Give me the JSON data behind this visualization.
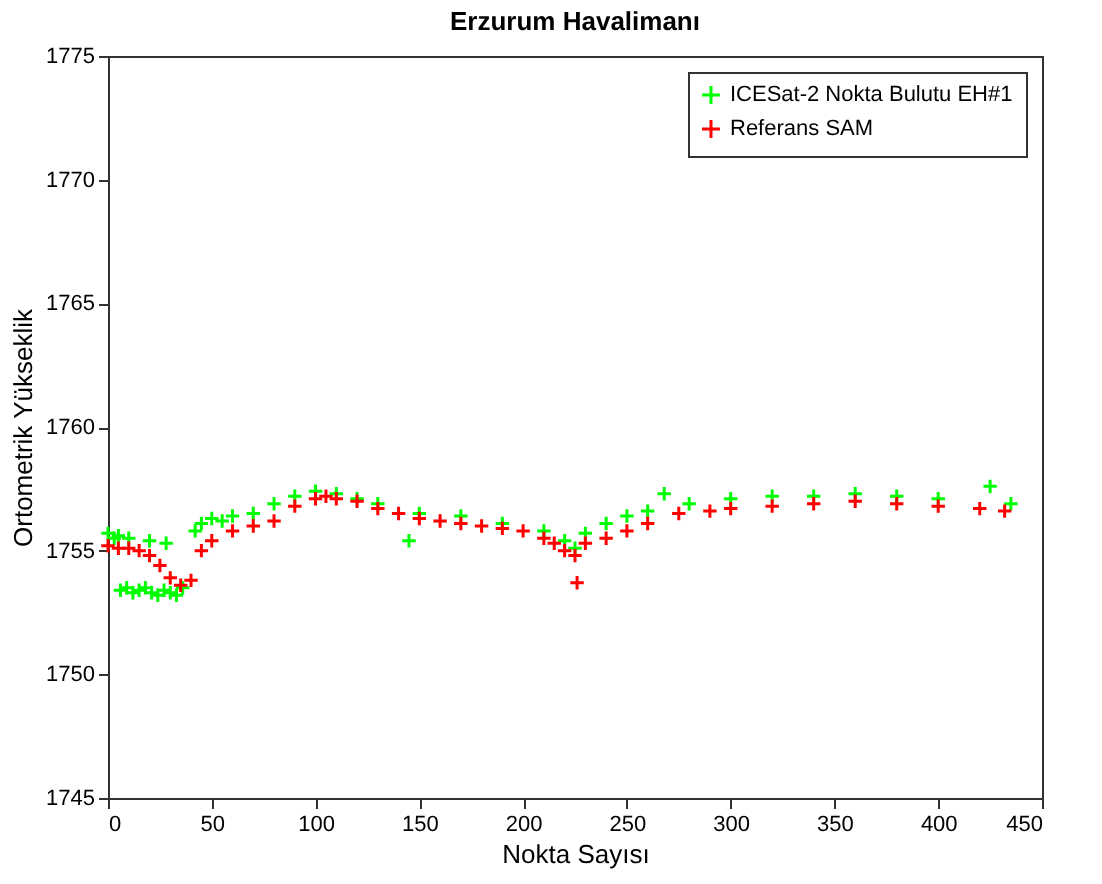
{
  "chart_data": {
    "type": "scatter",
    "title": "Erzurum Havalimanı",
    "xlabel": "Nokta Sayısı",
    "ylabel": "Ortometrik Yükseklik",
    "xlim": [
      0,
      450
    ],
    "xticks": [
      0,
      50,
      100,
      150,
      200,
      250,
      300,
      350,
      400,
      450
    ],
    "ylim": [
      1745,
      1775
    ],
    "yticks": [
      1745,
      1750,
      1755,
      1760,
      1765,
      1770,
      1775
    ],
    "grid": false,
    "legend": "top right",
    "marker": "cross",
    "series": [
      {
        "name": "ICESat-2 Nokta Bulutu EH#1",
        "color": "#00ff00",
        "x": [
          0,
          3,
          6,
          9,
          12,
          15,
          18,
          21,
          24,
          27,
          30,
          33,
          36,
          5,
          10,
          20,
          28,
          42,
          45,
          50,
          55,
          60,
          70,
          80,
          90,
          100,
          110,
          120,
          130,
          145,
          150,
          170,
          190,
          210,
          220,
          225,
          230,
          240,
          250,
          260,
          268,
          280,
          300,
          320,
          340,
          360,
          380,
          400,
          425,
          435
        ],
        "values": [
          1755.7,
          1755.5,
          1753.4,
          1753.5,
          1753.3,
          1753.4,
          1753.5,
          1753.3,
          1753.2,
          1753.4,
          1753.3,
          1753.2,
          1753.5,
          1755.6,
          1755.5,
          1755.4,
          1755.3,
          1755.8,
          1756.1,
          1756.3,
          1756.2,
          1756.4,
          1756.5,
          1756.9,
          1757.2,
          1757.4,
          1757.3,
          1757.1,
          1756.9,
          1755.4,
          1756.5,
          1756.4,
          1756.1,
          1755.8,
          1755.4,
          1755.1,
          1755.7,
          1756.1,
          1756.4,
          1756.6,
          1757.3,
          1756.9,
          1757.1,
          1757.2,
          1757.2,
          1757.3,
          1757.2,
          1757.1,
          1757.6,
          1756.9
        ]
      },
      {
        "name": "Referans SAM",
        "color": "#ff0000",
        "x": [
          0,
          5,
          10,
          15,
          20,
          25,
          30,
          35,
          40,
          45,
          50,
          60,
          70,
          80,
          90,
          100,
          105,
          110,
          120,
          130,
          140,
          150,
          160,
          170,
          180,
          190,
          200,
          210,
          215,
          220,
          225,
          226,
          230,
          240,
          250,
          260,
          275,
          290,
          300,
          320,
          340,
          360,
          380,
          400,
          420,
          432
        ],
        "values": [
          1755.2,
          1755.1,
          1755.1,
          1755.0,
          1754.8,
          1754.4,
          1753.9,
          1753.6,
          1753.8,
          1755.0,
          1755.4,
          1755.8,
          1756.0,
          1756.2,
          1756.8,
          1757.1,
          1757.2,
          1757.1,
          1757.0,
          1756.7,
          1756.5,
          1756.3,
          1756.2,
          1756.1,
          1756.0,
          1755.9,
          1755.8,
          1755.5,
          1755.3,
          1755.0,
          1754.8,
          1753.7,
          1755.3,
          1755.5,
          1755.8,
          1756.1,
          1756.5,
          1756.6,
          1756.7,
          1756.8,
          1756.9,
          1757.0,
          1756.9,
          1756.8,
          1756.7,
          1756.6
        ]
      }
    ]
  }
}
